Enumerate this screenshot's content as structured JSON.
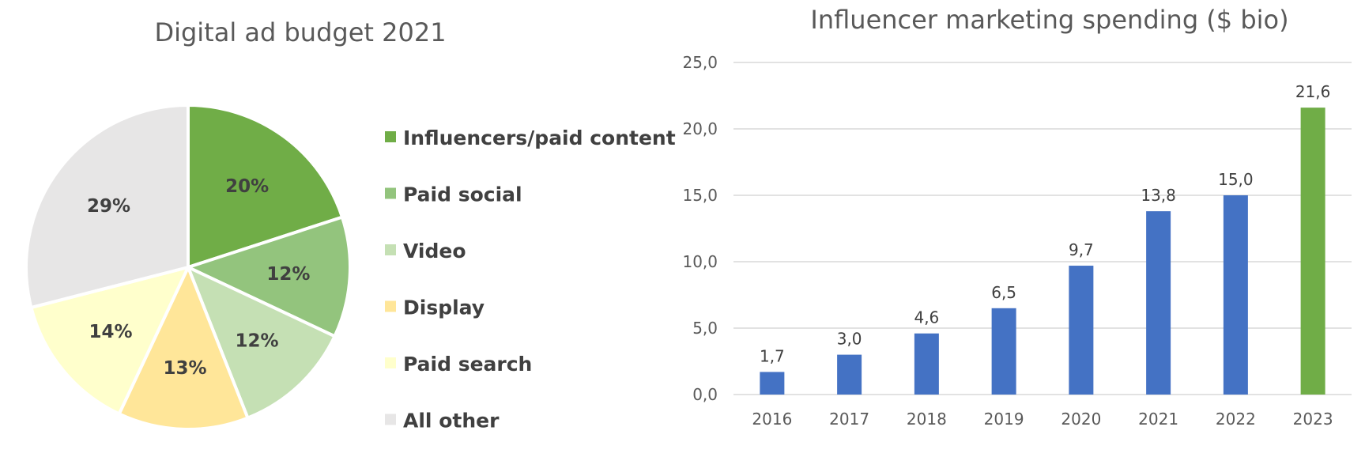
{
  "chart_data": [
    {
      "type": "pie",
      "title": "Digital ad budget 2021",
      "legend_position": "right",
      "slices": [
        {
          "name": "Influencers/paid content",
          "value": 20,
          "label": "20%",
          "color": "#70AD47"
        },
        {
          "name": "Paid social",
          "value": 12,
          "label": "12%",
          "color": "#93C47D"
        },
        {
          "name": "Video",
          "value": 12,
          "label": "12%",
          "color": "#C5E0B4"
        },
        {
          "name": "Display",
          "value": 13,
          "label": "13%",
          "color": "#FFE699"
        },
        {
          "name": "Paid search",
          "value": 14,
          "label": "14%",
          "color": "#FFFFCC"
        },
        {
          "name": "All other",
          "value": 29,
          "label": "29%",
          "color": "#E7E6E6"
        }
      ]
    },
    {
      "type": "bar",
      "title": "Influencer marketing spending ($ bio)",
      "categories": [
        "2016",
        "2017",
        "2018",
        "2019",
        "2020",
        "2021",
        "2022",
        "2023"
      ],
      "values": [
        1.7,
        3.0,
        4.6,
        6.5,
        9.7,
        13.8,
        15.0,
        21.6
      ],
      "value_labels": [
        "1,7",
        "3,0",
        "4,6",
        "6,5",
        "9,7",
        "13,8",
        "15,0",
        "21,6"
      ],
      "colors": [
        "#4472C4",
        "#4472C4",
        "#4472C4",
        "#4472C4",
        "#4472C4",
        "#4472C4",
        "#4472C4",
        "#70AD47"
      ],
      "ylim": [
        0,
        25
      ],
      "yticks": [
        0,
        5,
        10,
        15,
        20,
        25
      ],
      "ytick_labels": [
        "0,0",
        "5,0",
        "10,0",
        "15,0",
        "20,0",
        "25,0"
      ],
      "grid": true,
      "xlabel": "",
      "ylabel": ""
    }
  ]
}
